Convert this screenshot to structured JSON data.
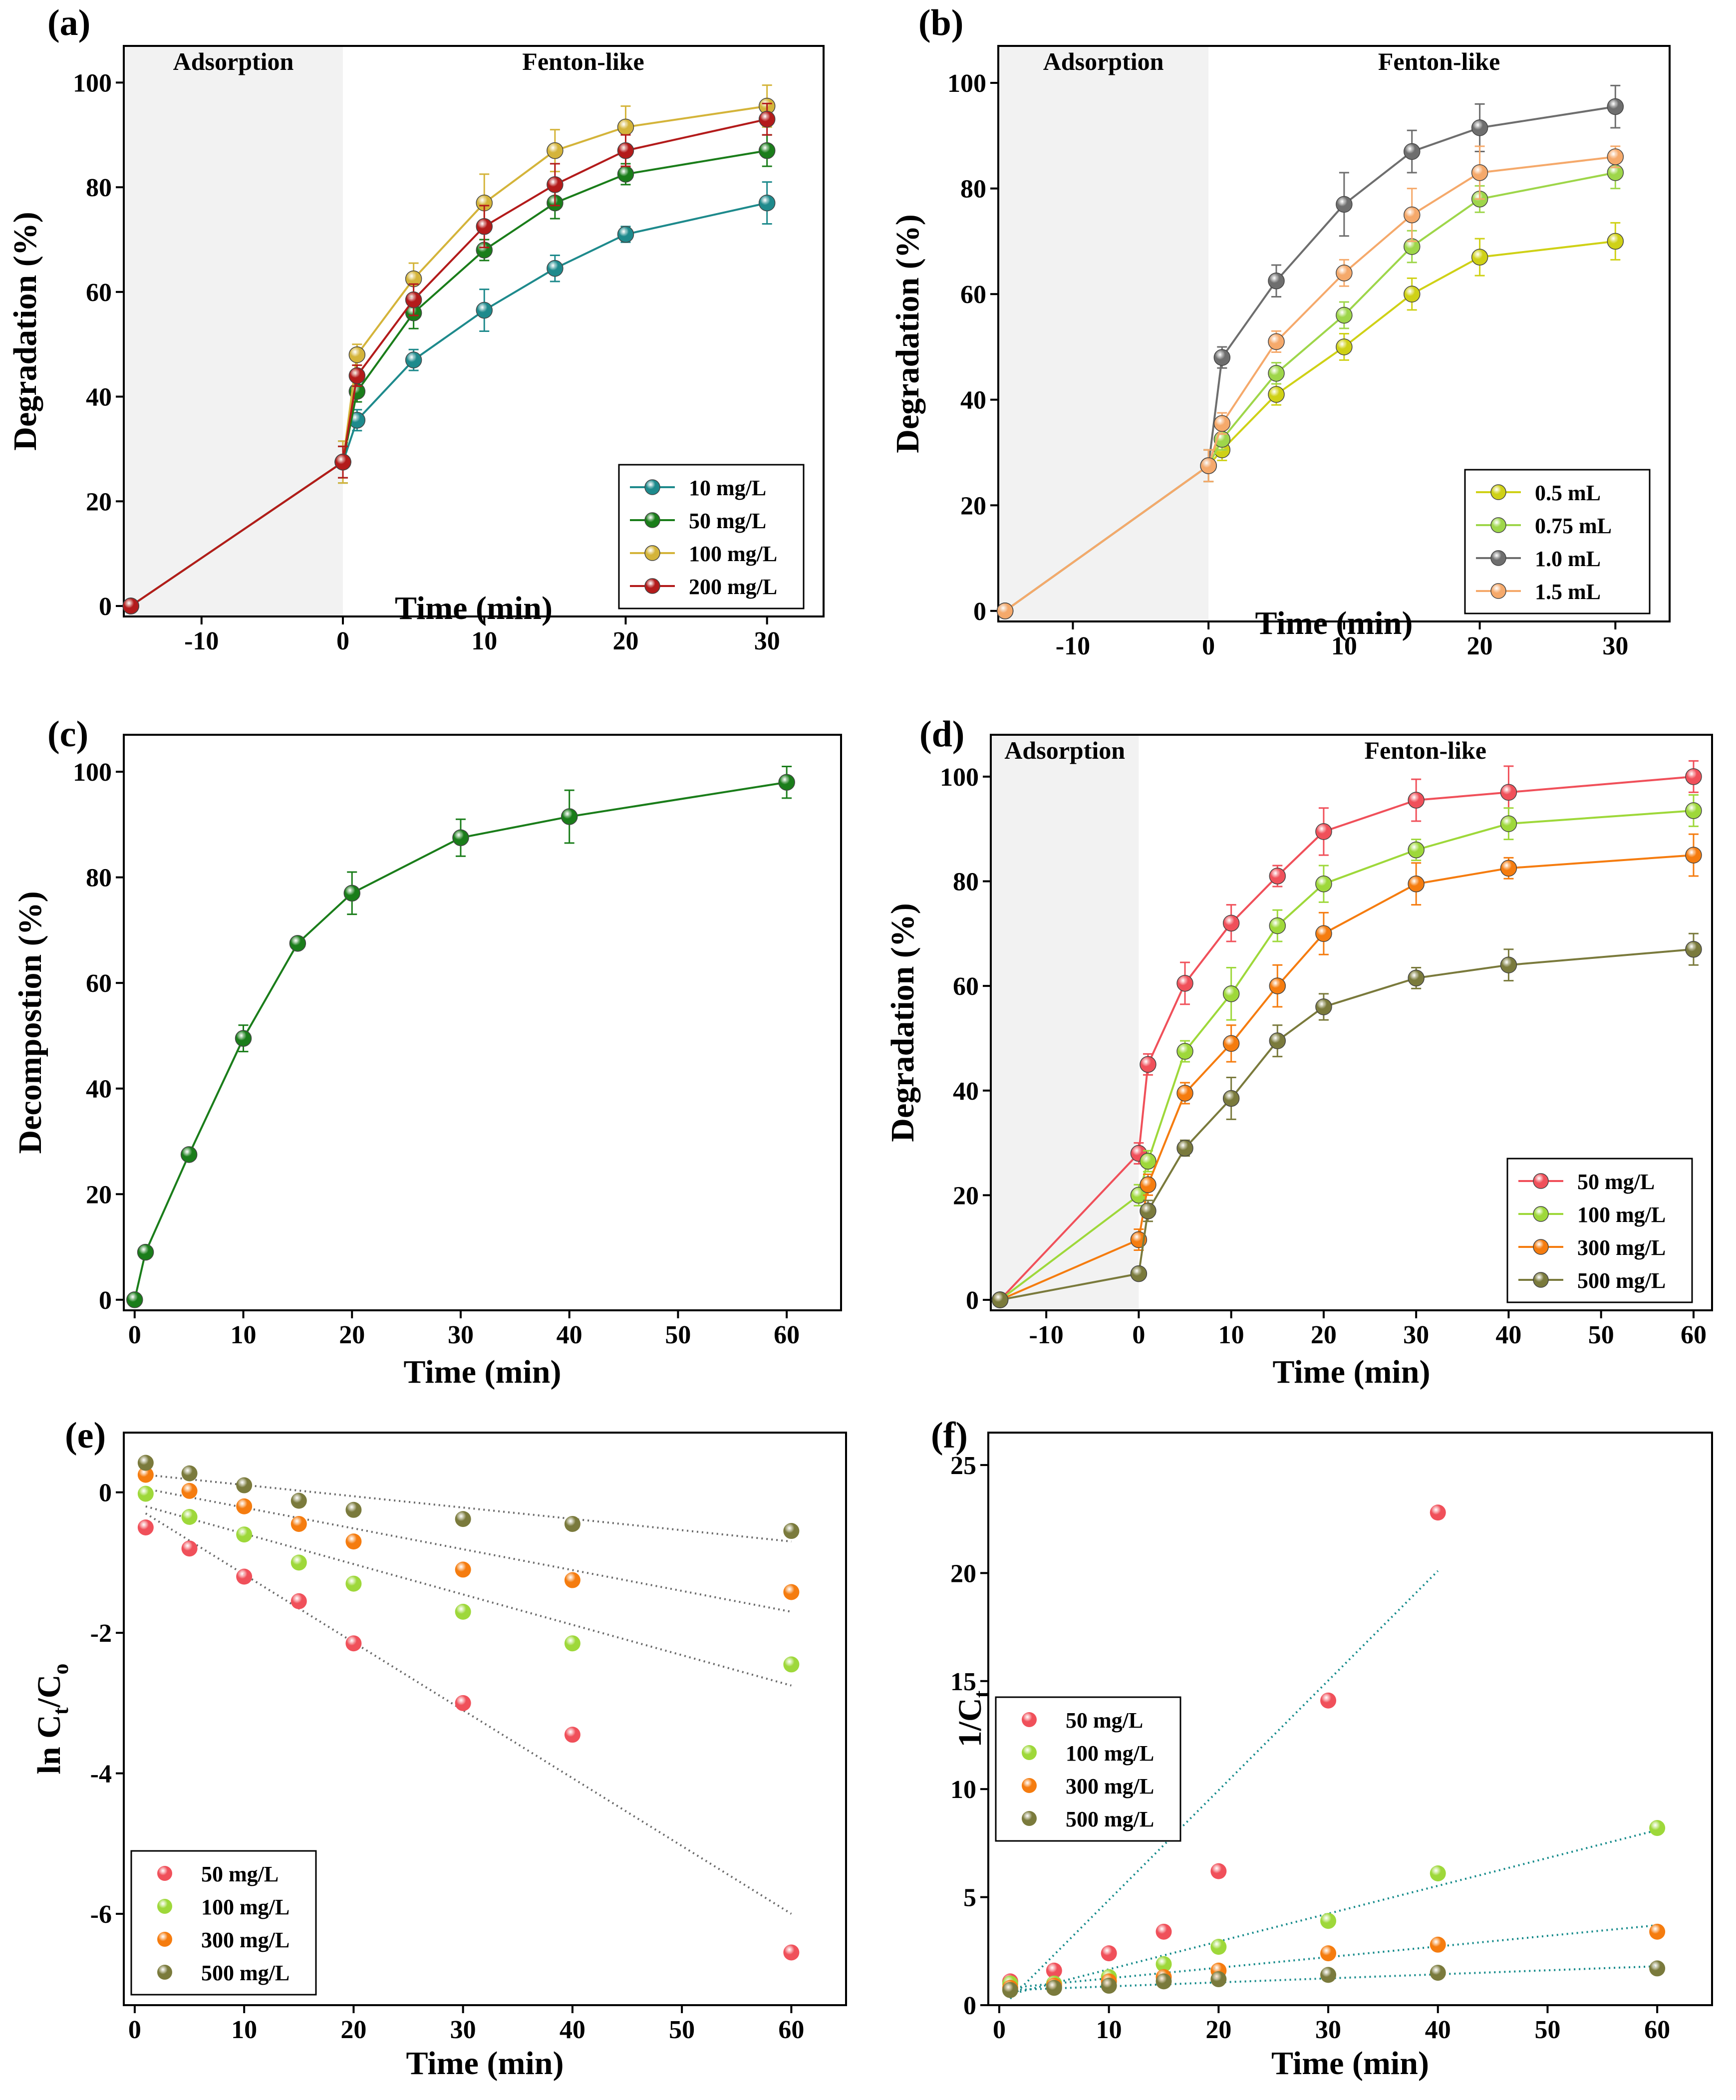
{
  "chart_data": [
    {
      "panel": "(a)",
      "type": "line",
      "xlabel": "Time (min)",
      "ylabel": "Degradation (%)",
      "xlim": [
        -15.5,
        34
      ],
      "ylim": [
        -2,
        107
      ],
      "xticks": [
        -10,
        0,
        10,
        20,
        30
      ],
      "yticks": [
        0,
        20,
        40,
        60,
        80,
        100
      ],
      "regions": {
        "shade_x": [
          -15.5,
          0
        ],
        "left_label": "Adsorption",
        "right_label": "Fenton-like"
      },
      "legend_position": "bottom-right",
      "series": [
        {
          "name": "10 mg/L",
          "color": "#1e8a8c",
          "x": [
            -15,
            0,
            1,
            5,
            10,
            15,
            20,
            30
          ],
          "y": [
            0,
            27.5,
            35.5,
            47,
            56.5,
            64.5,
            71,
            77
          ],
          "err": [
            0,
            4,
            2,
            2,
            4,
            2.5,
            1.5,
            4
          ]
        },
        {
          "name": "50 mg/L",
          "color": "#1a7d1a",
          "x": [
            -15,
            0,
            1,
            5,
            10,
            15,
            20,
            30
          ],
          "y": [
            0,
            27.5,
            41,
            56,
            68,
            77,
            82.5,
            87
          ],
          "err": [
            0,
            3,
            2,
            3,
            2,
            3,
            2,
            3
          ]
        },
        {
          "name": "100 mg/L",
          "color": "#d4b43a",
          "x": [
            -15,
            0,
            1,
            5,
            10,
            15,
            20,
            30
          ],
          "y": [
            0,
            27.5,
            48,
            62.5,
            77,
            87,
            91.5,
            95.5
          ],
          "err": [
            0,
            4,
            2,
            3,
            5.5,
            4,
            4,
            4
          ]
        },
        {
          "name": "200 mg/L",
          "color": "#b31b1b",
          "x": [
            -15,
            0,
            1,
            5,
            10,
            15,
            20,
            30
          ],
          "y": [
            0,
            27.5,
            44,
            58.5,
            72.5,
            80.5,
            87,
            93
          ],
          "err": [
            0,
            3,
            2,
            3,
            4,
            4,
            3,
            3
          ]
        }
      ]
    },
    {
      "panel": "(b)",
      "type": "line",
      "xlabel": "Time (min)",
      "ylabel": "Degradation (%)",
      "xlim": [
        -15.5,
        34
      ],
      "ylim": [
        -2,
        107
      ],
      "xticks": [
        -10,
        0,
        10,
        20,
        30
      ],
      "yticks": [
        0,
        20,
        40,
        60,
        80,
        100
      ],
      "regions": {
        "shade_x": [
          -15.5,
          0
        ],
        "left_label": "Adsorption",
        "right_label": "Fenton-like"
      },
      "legend_position": "bottom-right",
      "series": [
        {
          "name": "0.5 mL",
          "color": "#cfd116",
          "x": [
            -15,
            0,
            1,
            5,
            10,
            15,
            20,
            30
          ],
          "y": [
            0,
            27.5,
            30.5,
            41,
            50,
            60,
            67,
            70
          ],
          "err": [
            0,
            3,
            2,
            2,
            2.5,
            3,
            3.5,
            3.5
          ]
        },
        {
          "name": "0.75 mL",
          "color": "#9ed64a",
          "x": [
            -15,
            0,
            1,
            5,
            10,
            15,
            20,
            30
          ],
          "y": [
            0,
            27.5,
            32.5,
            45,
            56,
            69,
            78,
            83
          ],
          "err": [
            0,
            3,
            2,
            2,
            2.5,
            3,
            2.5,
            3
          ]
        },
        {
          "name": "1.0 mL",
          "color": "#6e6e6e",
          "x": [
            -15,
            0,
            1,
            5,
            10,
            15,
            20,
            30
          ],
          "y": [
            0,
            27.5,
            48,
            62.5,
            77,
            87,
            91.5,
            95.5
          ],
          "err": [
            0,
            3,
            2,
            3,
            6,
            4,
            4.5,
            4
          ]
        },
        {
          "name": "1.5 mL",
          "color": "#f5a96b",
          "x": [
            -15,
            0,
            1,
            5,
            10,
            15,
            20,
            30
          ],
          "y": [
            0,
            27.5,
            35.5,
            51,
            64,
            75,
            83,
            86
          ],
          "err": [
            0,
            3,
            2,
            2,
            2.5,
            5,
            5,
            2
          ]
        }
      ]
    },
    {
      "panel": "(c)",
      "type": "line",
      "xlabel": "Time (min)",
      "ylabel": "Decompostion (%)",
      "xlim": [
        -1,
        65
      ],
      "ylim": [
        -2,
        107
      ],
      "xticks": [
        0,
        10,
        20,
        30,
        40,
        50,
        60
      ],
      "yticks": [
        0,
        20,
        40,
        60,
        80,
        100
      ],
      "series": [
        {
          "name": "Decomposition",
          "color": "#1a7d1a",
          "x": [
            0,
            1,
            5,
            10,
            15,
            20,
            30,
            40,
            60
          ],
          "y": [
            0,
            9,
            27.5,
            49.5,
            67.5,
            77,
            87.5,
            91.5,
            98
          ],
          "err": [
            0,
            0,
            0,
            2.5,
            0,
            4,
            3.5,
            5,
            3
          ]
        }
      ]
    },
    {
      "panel": "(d)",
      "type": "line",
      "xlabel": "Time (min)",
      "ylabel": "Degradation (%)",
      "xlim": [
        -16,
        62
      ],
      "ylim": [
        -2,
        108
      ],
      "xticks": [
        -10,
        0,
        10,
        20,
        30,
        40,
        50,
        60
      ],
      "yticks": [
        0,
        20,
        40,
        60,
        80,
        100
      ],
      "regions": {
        "shade_x": [
          -16,
          0
        ],
        "left_label": "Adsorption",
        "right_label": "Fenton-like"
      },
      "legend_position": "bottom-right",
      "series": [
        {
          "name": "50 mg/L",
          "color": "#f0505a",
          "x": [
            -15,
            0,
            1,
            5,
            10,
            15,
            20,
            30,
            40,
            60
          ],
          "y": [
            0,
            28,
            45,
            60.5,
            72,
            81,
            89.5,
            95.5,
            97,
            100
          ],
          "err": [
            0,
            2,
            2,
            4,
            3.5,
            2,
            4.5,
            4,
            5,
            3
          ]
        },
        {
          "name": "100 mg/L",
          "color": "#9ed83a",
          "x": [
            -15,
            0,
            1,
            5,
            10,
            15,
            20,
            30,
            40,
            60
          ],
          "y": [
            0,
            20,
            26.5,
            47.5,
            58.5,
            71.5,
            79.5,
            86,
            91,
            93.5
          ],
          "err": [
            0,
            2,
            2,
            2,
            5,
            3,
            3.5,
            2,
            3,
            3
          ]
        },
        {
          "name": "300 mg/L",
          "color": "#f57c0f",
          "x": [
            -15,
            0,
            1,
            5,
            10,
            15,
            20,
            30,
            40,
            60
          ],
          "y": [
            0,
            11.5,
            22,
            39.5,
            49,
            60,
            70,
            79.5,
            82.5,
            85
          ],
          "err": [
            0,
            2,
            2,
            2,
            3.5,
            4,
            4,
            4,
            2,
            4
          ]
        },
        {
          "name": "500 mg/L",
          "color": "#7a7a3c",
          "x": [
            -15,
            0,
            1,
            5,
            10,
            15,
            20,
            30,
            40,
            60
          ],
          "y": [
            0,
            5,
            17,
            29,
            38.5,
            49.5,
            56,
            61.5,
            64,
            67
          ],
          "err": [
            0,
            1,
            2,
            1.5,
            4,
            3,
            2.5,
            2,
            3,
            3
          ]
        }
      ]
    },
    {
      "panel": "(e)",
      "type": "scatter",
      "xlabel": "Time (min)",
      "ylabel_main": "ln C",
      "ylabel_sub1": "t",
      "ylabel_mid": "/C",
      "ylabel_sub2": "o",
      "xlim": [
        -1,
        65
      ],
      "ylim": [
        -7.3,
        0.85
      ],
      "xticks": [
        0,
        10,
        20,
        30,
        40,
        50,
        60
      ],
      "yticks": [
        0,
        -2,
        -4,
        -6
      ],
      "ytick_labels": [
        "0",
        "-2",
        "-4",
        "-6"
      ],
      "legend_position": "bottom-left",
      "series": [
        {
          "name": "50 mg/L",
          "color": "#f0505a",
          "x": [
            1,
            5,
            10,
            15,
            20,
            30,
            40,
            60
          ],
          "y": [
            -0.5,
            -0.8,
            -1.2,
            -1.55,
            -2.15,
            -3.0,
            -3.45,
            -6.55
          ],
          "fit": {
            "x": [
              1,
              60
            ],
            "y": [
              -0.3,
              -6.0
            ]
          }
        },
        {
          "name": "100 mg/L",
          "color": "#9ed83a",
          "x": [
            1,
            5,
            10,
            15,
            20,
            30,
            40,
            60
          ],
          "y": [
            -0.02,
            -0.35,
            -0.6,
            -1.0,
            -1.3,
            -1.7,
            -2.15,
            -2.45
          ],
          "fit": {
            "x": [
              1,
              60
            ],
            "y": [
              -0.2,
              -2.75
            ]
          }
        },
        {
          "name": "300 mg/L",
          "color": "#f57c0f",
          "x": [
            1,
            5,
            10,
            15,
            20,
            30,
            40,
            60
          ],
          "y": [
            0.25,
            0.02,
            -0.2,
            -0.45,
            -0.7,
            -1.1,
            -1.25,
            -1.42
          ],
          "fit": {
            "x": [
              1,
              60
            ],
            "y": [
              0.05,
              -1.7
            ]
          }
        },
        {
          "name": "500 mg/L",
          "color": "#7a7a3c",
          "x": [
            1,
            5,
            10,
            15,
            20,
            30,
            40,
            60
          ],
          "y": [
            0.42,
            0.27,
            0.1,
            -0.12,
            -0.25,
            -0.38,
            -0.45,
            -0.55
          ],
          "fit": {
            "x": [
              1,
              60
            ],
            "y": [
              0.25,
              -0.7
            ]
          }
        }
      ]
    },
    {
      "panel": "(f)",
      "type": "scatter",
      "xlabel": "Time (min)",
      "ylabel_main": "1/C",
      "ylabel_sub1": "t",
      "xlim": [
        -1,
        65
      ],
      "ylim": [
        0,
        26.5
      ],
      "xticks": [
        0,
        10,
        20,
        30,
        40,
        50,
        60
      ],
      "yticks": [
        0,
        5,
        10,
        15,
        20,
        25
      ],
      "ytick_labels": [
        "0",
        "5",
        "10",
        "15",
        "20",
        "25"
      ],
      "legend_position": "middle-left",
      "series": [
        {
          "name": "50 mg/L",
          "color": "#f0505a",
          "x": [
            1,
            5,
            10,
            15,
            20,
            30,
            40
          ],
          "y": [
            1.1,
            1.6,
            2.4,
            3.4,
            6.2,
            14.1,
            22.8
          ],
          "fit": {
            "x": [
              1,
              40
            ],
            "y": [
              0.3,
              20.1
            ]
          }
        },
        {
          "name": "100 mg/L",
          "color": "#9ed83a",
          "x": [
            1,
            5,
            10,
            15,
            20,
            30,
            40,
            60
          ],
          "y": [
            1.0,
            1.0,
            1.3,
            1.9,
            2.7,
            3.9,
            6.1,
            8.2
          ],
          "fit": {
            "x": [
              1,
              60
            ],
            "y": [
              0.5,
              8.1
            ]
          }
        },
        {
          "name": "300 mg/L",
          "color": "#f57c0f",
          "x": [
            1,
            5,
            10,
            15,
            20,
            30,
            40,
            60
          ],
          "y": [
            0.8,
            0.9,
            1.1,
            1.3,
            1.6,
            2.4,
            2.8,
            3.4
          ],
          "fit": {
            "x": [
              1,
              60
            ],
            "y": [
              0.8,
              3.7
            ]
          }
        },
        {
          "name": "500 mg/L",
          "color": "#7a7a3c",
          "x": [
            1,
            5,
            10,
            15,
            20,
            30,
            40,
            60
          ],
          "y": [
            0.7,
            0.8,
            0.9,
            1.1,
            1.2,
            1.4,
            1.5,
            1.7
          ],
          "fit": {
            "x": [
              1,
              60
            ],
            "y": [
              0.7,
              1.8
            ]
          }
        }
      ]
    }
  ]
}
